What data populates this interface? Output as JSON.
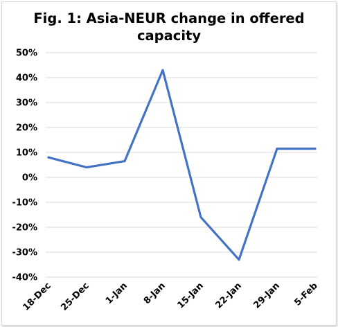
{
  "chart_data": {
    "type": "line",
    "title": "Fig. 1: Asia-NEUR change in offered capacity",
    "categories": [
      "18-Dec",
      "25-Dec",
      "1-Jan",
      "8-Jan",
      "15-Jan",
      "22-Jan",
      "29-Jan",
      "5-Feb"
    ],
    "series": [
      {
        "values": [
          8,
          4,
          6.5,
          43,
          -16,
          -33,
          11.5,
          11.5
        ]
      }
    ],
    "xlabel": "",
    "ylabel": "",
    "ylim": [
      -40,
      50
    ],
    "yticks": [
      50,
      40,
      30,
      20,
      10,
      0,
      -10,
      -20,
      -30,
      -40
    ],
    "ytick_labels": [
      "50%",
      "40%",
      "30%",
      "20%",
      "10%",
      "0%",
      "-10%",
      "-20%",
      "-30%",
      "-40%"
    ],
    "grid": true,
    "legend": "none",
    "line_color": "#4472c4",
    "grid_color": "#d9d9d9"
  }
}
